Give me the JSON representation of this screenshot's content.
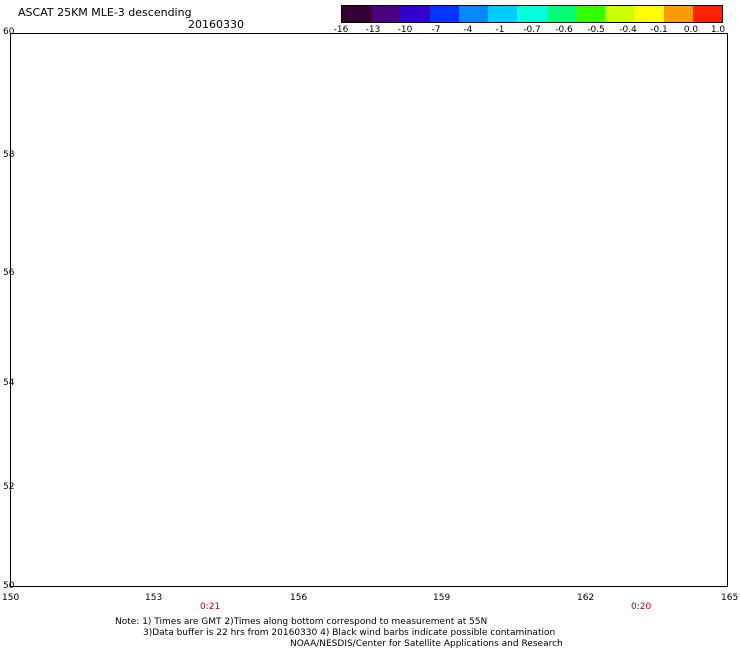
{
  "header": {
    "title": "ASCAT 25KM MLE-3 descending",
    "date": "20160330"
  },
  "colorbar": {
    "labels": [
      "-16",
      "-13",
      "-10",
      "-7",
      "-4",
      "-1",
      "-0.7",
      "-0.6",
      "-0.5",
      "-0.4",
      "-0.1",
      "0.0",
      "1.0"
    ],
    "colors": [
      "#330033",
      "#4b0082",
      "#3300cc",
      "#0033ff",
      "#0088ff",
      "#00ccff",
      "#00ffdd",
      "#00ff77",
      "#33ff00",
      "#ccff00",
      "#ffff00",
      "#ff9900",
      "#ff2200"
    ]
  },
  "map": {
    "lat_labels": [
      "60",
      "58",
      "56",
      "54",
      "52",
      "50"
    ],
    "lon_labels": [
      "150",
      "153",
      "156",
      "159",
      "162",
      "165"
    ],
    "time_labels": [
      "0:21",
      "0:20"
    ]
  },
  "notes": {
    "line1": "Note: 1) Times are GMT 2)Times along bottom correspond to measurement at 55N",
    "line2": "3)Data buffer is 22 hrs from 20160330 4) Black wind barbs indicate possible contamination",
    "line3": "NOAA/NESDIS/Center for Satellite Applications and Research"
  }
}
